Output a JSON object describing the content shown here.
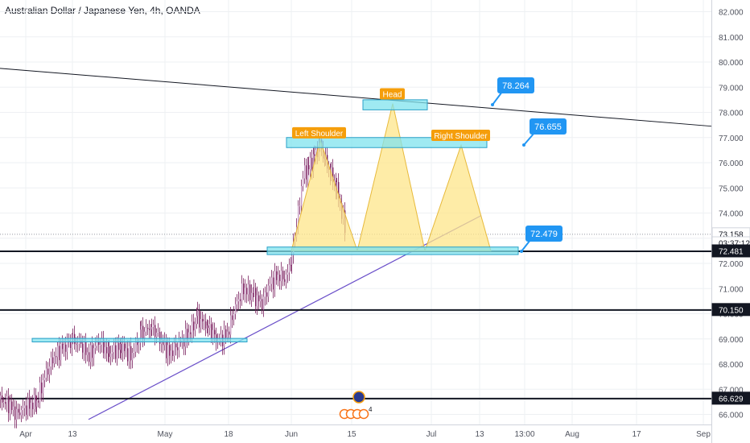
{
  "header": {
    "title": "Australian Dollar / Japanese Yen, 4h, OANDA"
  },
  "chart_data": {
    "type": "candlestick",
    "title": "Australian Dollar / Japanese Yen, 4h, OANDA",
    "ylim": [
      65.6,
      82.4
    ],
    "y_ticks": [
      "66.000",
      "67.000",
      "68.000",
      "69.000",
      "70.000",
      "71.000",
      "72.000",
      "73.000",
      "74.000",
      "75.000",
      "76.000",
      "77.000",
      "78.000",
      "79.000",
      "80.000",
      "81.000",
      "82.000"
    ],
    "x_ticks": [
      "Apr",
      "13",
      "May",
      "18",
      "Jun",
      "15",
      "Jul",
      "13",
      "13:00",
      "Aug",
      "17",
      "Sep"
    ],
    "price_badges": [
      {
        "label": "73.158",
        "value": 73.158,
        "color": "#ffffff",
        "text_color": "#131722"
      },
      {
        "label": "03:37:12",
        "value": 72.8,
        "color": "#ffffff",
        "text_color": "#131722"
      },
      {
        "label": "72.481",
        "value": 72.481,
        "color": "#131722",
        "text_color": "#ffffff"
      },
      {
        "label": "70.150",
        "value": 70.15,
        "color": "#131722",
        "text_color": "#ffffff"
      },
      {
        "label": "66.629",
        "value": 66.629,
        "color": "#131722",
        "text_color": "#ffffff"
      }
    ],
    "horizontal_lines": [
      72.481,
      70.15,
      66.629
    ],
    "last_price": 73.158,
    "pattern_labels": [
      {
        "label": "Left Shoulder",
        "value": 76.9
      },
      {
        "label": "Head",
        "value": 78.45
      },
      {
        "label": "Right Shoulder",
        "value": 76.8
      }
    ],
    "callouts": [
      {
        "label": "78.264",
        "value": 78.264
      },
      {
        "label": "76.655",
        "value": 76.655
      },
      {
        "label": "72.479",
        "value": 72.479
      }
    ],
    "zones": [
      {
        "name": "neckline",
        "low": 72.35,
        "high": 72.65
      },
      {
        "name": "shoulders",
        "low": 76.6,
        "high": 77.0
      },
      {
        "name": "head",
        "low": 78.1,
        "high": 78.5
      },
      {
        "name": "old-support",
        "low": 68.88,
        "high": 69.02
      }
    ],
    "colors": {
      "zone_fill": "#7fe3ee",
      "zone_stroke": "#2aa0c8",
      "triangle_fill": "#fde68a",
      "label_fill": "#f59e0b",
      "callout_fill": "#2196f3",
      "trend_purple": "#6a4fc9",
      "candle": "#7a1f5e"
    },
    "grid": true
  }
}
